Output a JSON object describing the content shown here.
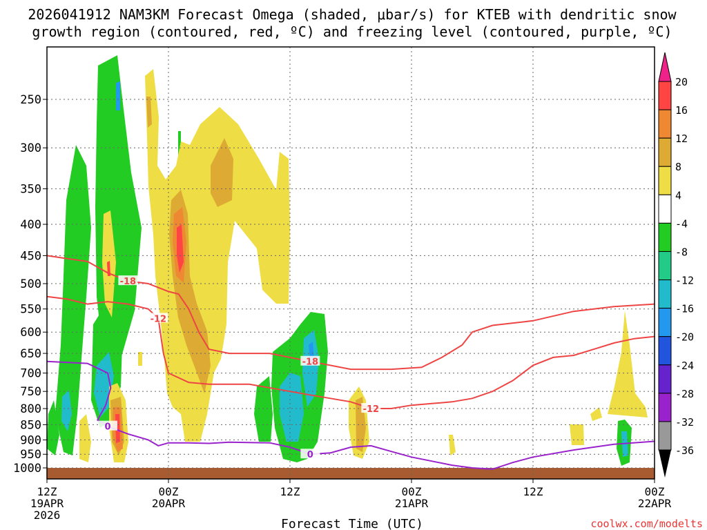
{
  "chart_data": {
    "type": "heatmap",
    "title_lines": [
      "2026041912 NAM3KM Forecast Omega (shaded, μbar/s) for KTEB with dendritic snow",
      "growth region (contoured, red, ºC) and freezing level (contoured, purple, ºC)"
    ],
    "xlabel": "Forecast Time (UTC)",
    "watermark": "coolwx.com/modelts",
    "x_ticks": [
      {
        "hours": 0,
        "lines": [
          "12Z",
          "19APR",
          "2026"
        ]
      },
      {
        "hours": 12,
        "lines": [
          "00Z",
          "20APR"
        ]
      },
      {
        "hours": 24,
        "lines": [
          "12Z"
        ]
      },
      {
        "hours": 36,
        "lines": [
          "00Z",
          "21APR"
        ]
      },
      {
        "hours": 48,
        "lines": [
          "12Z"
        ]
      },
      {
        "hours": 60,
        "lines": [
          "00Z",
          "22APR"
        ]
      }
    ],
    "x_range_hours": [
      0,
      60
    ],
    "y_ticks": [
      250,
      300,
      350,
      400,
      450,
      500,
      550,
      600,
      650,
      700,
      750,
      800,
      850,
      900,
      950,
      1000
    ],
    "y_range_hpa": [
      1000,
      200
    ],
    "y_scale": "log-pressure",
    "grid": true,
    "colorbar": {
      "labels": [
        20,
        16,
        12,
        8,
        4,
        -4,
        -8,
        -12,
        -16,
        -20,
        -24,
        -28,
        -32,
        -36
      ],
      "colors": [
        "#ff4444",
        "#ee8833",
        "#ddaa33",
        "#eedd44",
        "#ffffff",
        "#22cc22",
        "#22cc88",
        "#22bbcc",
        "#2299ee",
        "#2255dd",
        "#6622cc",
        "#9922cc",
        "#999999"
      ],
      "top_arrow_color": "#ee2288",
      "bottom_arrow_color": "#000000"
    },
    "contours": [
      {
        "label": "-18",
        "color": "#ee4444",
        "points": [
          [
            0,
            450
          ],
          [
            2,
            455
          ],
          [
            4,
            460
          ],
          [
            6,
            480
          ],
          [
            8,
            495
          ],
          [
            10,
            500
          ],
          [
            12,
            515
          ],
          [
            13,
            520
          ],
          [
            14,
            550
          ],
          [
            15,
            600
          ],
          [
            16,
            640
          ],
          [
            18,
            650
          ],
          [
            22,
            650
          ],
          [
            26,
            670
          ],
          [
            30,
            690
          ],
          [
            34,
            690
          ],
          [
            37,
            685
          ],
          [
            39,
            660
          ],
          [
            41,
            630
          ],
          [
            42,
            600
          ],
          [
            44,
            585
          ],
          [
            48,
            575
          ],
          [
            52,
            555
          ],
          [
            56,
            545
          ],
          [
            60,
            540
          ]
        ]
      },
      {
        "label": "-12",
        "color": "#ee4444",
        "points": [
          [
            0,
            525
          ],
          [
            2,
            530
          ],
          [
            4,
            540
          ],
          [
            6,
            535
          ],
          [
            8,
            540
          ],
          [
            10,
            550
          ],
          [
            11,
            570
          ],
          [
            11.5,
            650
          ],
          [
            12,
            700
          ],
          [
            14,
            725
          ],
          [
            16,
            730
          ],
          [
            20,
            730
          ],
          [
            24,
            750
          ],
          [
            26,
            760
          ],
          [
            28,
            770
          ],
          [
            30,
            780
          ],
          [
            32,
            800
          ],
          [
            34,
            800
          ],
          [
            36,
            790
          ],
          [
            38,
            785
          ],
          [
            40,
            780
          ],
          [
            42,
            770
          ],
          [
            44,
            750
          ],
          [
            46,
            720
          ],
          [
            48,
            680
          ],
          [
            50,
            660
          ],
          [
            52,
            655
          ],
          [
            54,
            640
          ],
          [
            56,
            625
          ],
          [
            58,
            615
          ],
          [
            60,
            610
          ]
        ]
      },
      {
        "label": "0",
        "color": "#9922cc",
        "points": [
          [
            0,
            670
          ],
          [
            4,
            675
          ],
          [
            6,
            700
          ],
          [
            6.3,
            740
          ],
          [
            5.8,
            790
          ],
          [
            5,
            835
          ],
          [
            6,
            855
          ],
          [
            8,
            880
          ],
          [
            10,
            900
          ],
          [
            11,
            920
          ],
          [
            12,
            910
          ],
          [
            14,
            910
          ],
          [
            16,
            912
          ],
          [
            18,
            908
          ],
          [
            22,
            910
          ],
          [
            24,
            925
          ],
          [
            26,
            950
          ],
          [
            28,
            945
          ],
          [
            30,
            925
          ],
          [
            32,
            920
          ],
          [
            34,
            940
          ],
          [
            36,
            960
          ],
          [
            38,
            975
          ],
          [
            40,
            990
          ],
          [
            42,
            1000
          ],
          [
            44,
            1005
          ],
          [
            46,
            980
          ],
          [
            48,
            960
          ],
          [
            52,
            935
          ],
          [
            56,
            915
          ],
          [
            60,
            905
          ]
        ]
      }
    ]
  }
}
